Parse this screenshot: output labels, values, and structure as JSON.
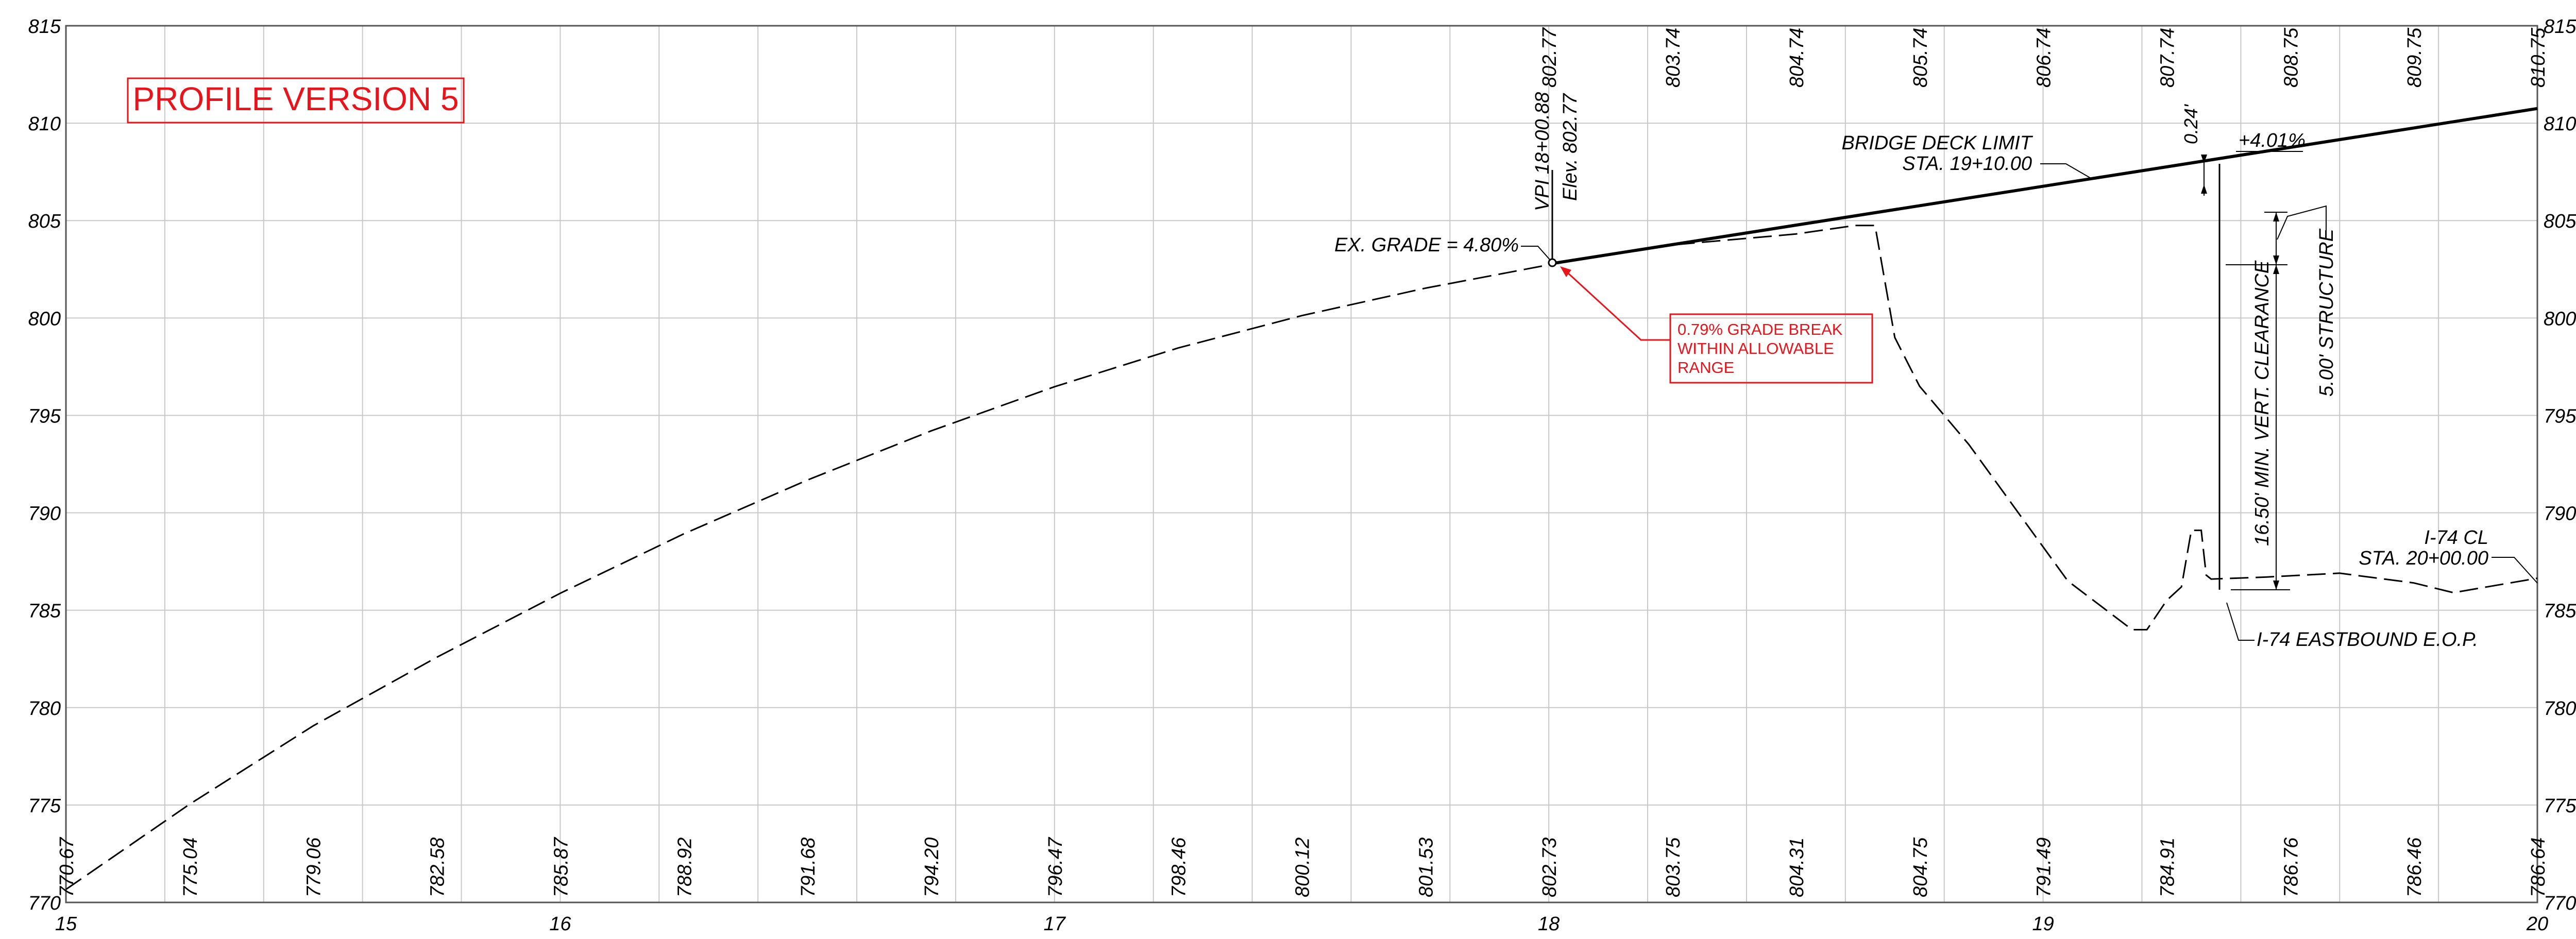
{
  "title": "PROFILE VERSION 5",
  "y_axis": {
    "min": 770,
    "max": 815,
    "step": 5,
    "labels": [
      "770",
      "775",
      "780",
      "785",
      "790",
      "795",
      "800",
      "805",
      "810",
      "815"
    ]
  },
  "x_axis": {
    "min": 15,
    "max": 20,
    "labels": [
      "15",
      "16",
      "17",
      "18",
      "19",
      "20"
    ]
  },
  "top_elevations": [
    "802.77",
    "803.74",
    "804.74",
    "805.74",
    "806.74",
    "807.74",
    "808.75",
    "809.75",
    "810.75"
  ],
  "bottom_elevations": [
    "770.67",
    "775.04",
    "779.06",
    "782.58",
    "785.87",
    "788.92",
    "791.68",
    "794.20",
    "796.47",
    "798.46",
    "800.12",
    "801.53",
    "802.73",
    "803.75",
    "804.31",
    "804.75",
    "791.49",
    "784.91",
    "786.76",
    "786.46",
    "786.64"
  ],
  "annotations": {
    "vpi_station": "VPI 18+00.88",
    "vpi_elev": "Elev. 802.77",
    "ex_grade": "EX. GRADE = 4.80%",
    "bridge_limit_1": "BRIDGE DECK LIMIT",
    "bridge_limit_2": "STA. 19+10.00",
    "dim_024": "0.24'",
    "grade_up": "+4.01%",
    "structure": "5.00' STRUCTURE",
    "clearance": "16.50' MIN. VERT. CLEARANCE",
    "i74_cl_1": "I-74 CL",
    "i74_cl_2": "STA. 20+00.00",
    "i74_eop": "I-74 EASTBOUND E.O.P.",
    "note_1": "0.79% GRADE BREAK",
    "note_2": "WITHIN ALLOWABLE",
    "note_3": "RANGE"
  },
  "colors": {
    "grid": "#c8c8c8",
    "ink": "#000000",
    "accent": "#e8141b"
  },
  "chart_data": {
    "type": "line",
    "xlabel": "",
    "ylabel": "",
    "xlim": [
      15,
      20
    ],
    "ylim": [
      770,
      815
    ],
    "series": [
      {
        "style": "dashed",
        "x": [
          15.0,
          15.25,
          15.5,
          15.75,
          16.0,
          16.25,
          16.5,
          16.75,
          17.0,
          17.25,
          17.5,
          17.75,
          18.0,
          18.25,
          18.5,
          18.62,
          18.66,
          18.7,
          18.75,
          18.85,
          18.95,
          19.05,
          19.18,
          19.2,
          19.21,
          19.25,
          19.28,
          19.3,
          19.32,
          19.33,
          19.34,
          19.45,
          19.6,
          19.75,
          19.83,
          20.0
        ],
        "y": [
          770.67,
          775.04,
          779.06,
          782.58,
          785.87,
          788.92,
          791.68,
          794.2,
          796.47,
          798.46,
          800.12,
          801.53,
          802.73,
          803.75,
          804.31,
          804.75,
          804.75,
          799.0,
          796.5,
          793.5,
          790.0,
          786.5,
          784.0,
          784.0,
          784.0,
          785.5,
          786.2,
          789.1,
          789.1,
          786.8,
          786.6,
          786.7,
          786.9,
          786.4,
          785.9,
          786.64
        ]
      },
      {
        "style": "solid",
        "x": [
          18.0,
          20.0
        ],
        "y": [
          802.77,
          810.75
        ]
      }
    ]
  }
}
